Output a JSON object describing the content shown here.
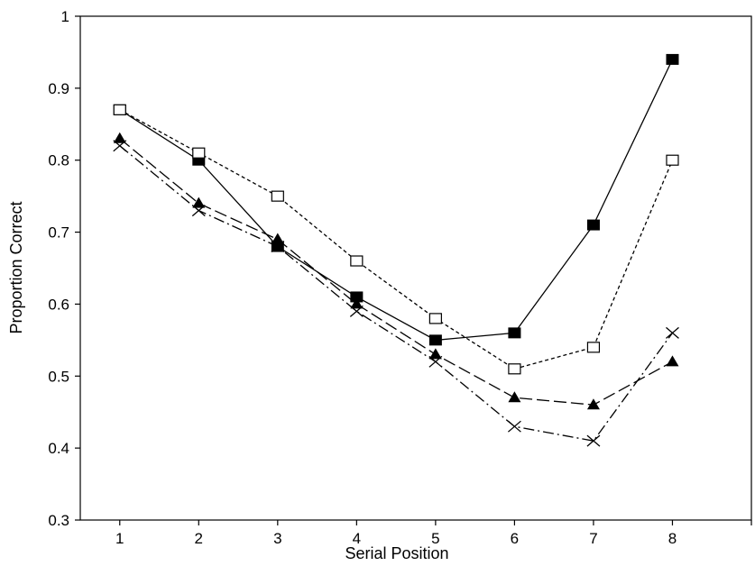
{
  "chart_data": {
    "type": "line",
    "title": "",
    "xlabel": "Serial Position",
    "ylabel": "Proportion Correct",
    "x": [
      1,
      2,
      3,
      4,
      5,
      6,
      7,
      8
    ],
    "xlim": [
      0.5,
      9.0
    ],
    "ylim": [
      0.3,
      1.0
    ],
    "x_ticks": [
      1,
      2,
      3,
      4,
      5,
      6,
      7,
      8
    ],
    "y_ticks": [
      0.3,
      0.4,
      0.5,
      0.6,
      0.7,
      0.8,
      0.9,
      1.0
    ],
    "x_tick_labels": [
      "1",
      "2",
      "3",
      "4",
      "5",
      "6",
      "7",
      "8"
    ],
    "y_tick_labels": [
      "0.3",
      "0.4",
      "0.5",
      "0.6",
      "0.7",
      "0.8",
      "0.9",
      "1"
    ],
    "grid": false,
    "legend": "none",
    "series": [
      {
        "marker": "filled-square",
        "line_style": "solid",
        "color": "#000000",
        "values": [
          0.87,
          0.8,
          0.68,
          0.61,
          0.55,
          0.56,
          0.71,
          0.94
        ]
      },
      {
        "marker": "open-square",
        "line_style": "short-dash",
        "color": "#000000",
        "values": [
          0.87,
          0.81,
          0.75,
          0.66,
          0.58,
          0.51,
          0.54,
          0.8
        ]
      },
      {
        "marker": "filled-triangle",
        "line_style": "long-dash",
        "color": "#000000",
        "values": [
          0.83,
          0.74,
          0.69,
          0.6,
          0.53,
          0.47,
          0.46,
          0.52
        ]
      },
      {
        "marker": "x-cross",
        "line_style": "dash-dot",
        "color": "#000000",
        "values": [
          0.82,
          0.73,
          0.68,
          0.59,
          0.52,
          0.43,
          0.41,
          0.56
        ]
      }
    ]
  }
}
